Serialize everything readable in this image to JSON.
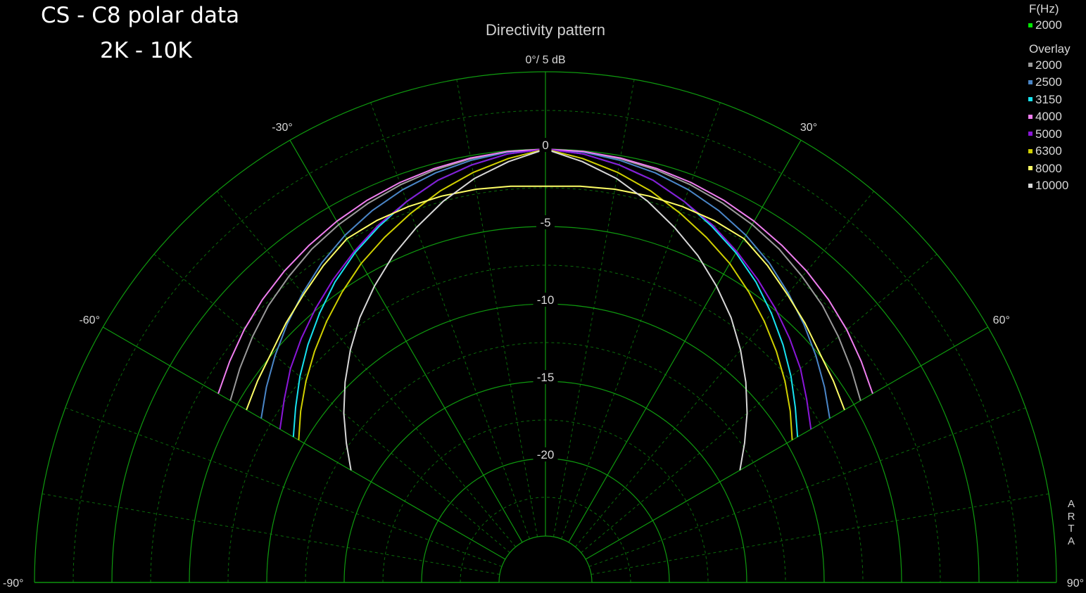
{
  "header": {
    "title": "CS - C8 polar data",
    "subtitle": "2K - 10K"
  },
  "badge": "ARTA",
  "chart_data": {
    "type": "polar",
    "title": "Directivity pattern",
    "scale_label": "0°/ 5 dB",
    "angle_unit": "deg",
    "angle_range": [
      -90,
      90
    ],
    "angle_ticks": [
      {
        "angle": -90,
        "label": "-90°"
      },
      {
        "angle": -60,
        "label": "-60°"
      },
      {
        "angle": -30,
        "label": "-30°"
      },
      {
        "angle": 30,
        "label": "30°"
      },
      {
        "angle": 60,
        "label": "60°"
      },
      {
        "angle": 90,
        "label": "90°"
      }
    ],
    "radial_range_db": [
      -25,
      5
    ],
    "radial_ticks": [
      {
        "value": 0,
        "label": "0"
      },
      {
        "value": -5,
        "label": "-5"
      },
      {
        "value": -10,
        "label": "-10"
      },
      {
        "value": -15,
        "label": "-15"
      },
      {
        "value": -20,
        "label": "-20"
      }
    ],
    "legend": {
      "frequency_header": "F(Hz)",
      "current": {
        "label": "2000",
        "color": "#00e600"
      },
      "overlay_header": "Overlay",
      "overlays": [
        {
          "label": "2000",
          "color": "#9a9a9a"
        },
        {
          "label": "2500",
          "color": "#4a86c8"
        },
        {
          "label": "3150",
          "color": "#17e3f0"
        },
        {
          "label": "4000",
          "color": "#f07ef0"
        },
        {
          "label": "5000",
          "color": "#8a16d8"
        },
        {
          "label": "6300",
          "color": "#d0d000"
        },
        {
          "label": "8000",
          "color": "#ffff66"
        },
        {
          "label": "10000",
          "color": "#d8d8d8"
        }
      ]
    },
    "series": [
      {
        "name": "2000",
        "color": "#9a9a9a",
        "angles": [
          -60,
          -55,
          -50,
          -45,
          -40,
          -35,
          -30,
          -25,
          -20,
          -15,
          -10,
          -5,
          0,
          5,
          10,
          15,
          20,
          25,
          30,
          35,
          40,
          45,
          50,
          55,
          60
        ],
        "db": [
          -4.5,
          -3.9,
          -3.3,
          -2.7,
          -2.2,
          -1.7,
          -1.3,
          -0.95,
          -0.65,
          -0.4,
          -0.2,
          -0.05,
          0,
          -0.05,
          -0.2,
          -0.4,
          -0.65,
          -0.95,
          -1.3,
          -1.7,
          -2.2,
          -2.7,
          -3.3,
          -3.9,
          -4.5
        ]
      },
      {
        "name": "2500",
        "color": "#4a86c8",
        "angles": [
          -60,
          -55,
          -50,
          -45,
          -40,
          -35,
          -30,
          -25,
          -20,
          -15,
          -10,
          -5,
          0,
          5,
          10,
          15,
          20,
          25,
          30,
          35,
          40,
          45,
          50,
          55,
          60
        ],
        "db": [
          -6.8,
          -6.0,
          -5.2,
          -4.4,
          -3.6,
          -2.8,
          -2.1,
          -1.5,
          -1.0,
          -0.6,
          -0.3,
          -0.08,
          0,
          -0.08,
          -0.3,
          -0.6,
          -1.0,
          -1.5,
          -2.1,
          -2.8,
          -3.6,
          -4.4,
          -5.2,
          -6.0,
          -6.8
        ]
      },
      {
        "name": "3150",
        "color": "#17e3f0",
        "angles": [
          -60,
          -55,
          -50,
          -45,
          -40,
          -35,
          -30,
          -25,
          -20,
          -15,
          -10,
          -5,
          0,
          5,
          10,
          15,
          20,
          25,
          30,
          35,
          40,
          45,
          50,
          55,
          60
        ],
        "db": [
          -9.2,
          -8.3,
          -7.3,
          -6.3,
          -5.3,
          -4.3,
          -3.4,
          -2.6,
          -1.8,
          -1.1,
          -0.6,
          -0.2,
          0,
          -0.2,
          -0.6,
          -1.1,
          -1.8,
          -2.6,
          -3.4,
          -4.3,
          -5.3,
          -6.3,
          -7.3,
          -8.3,
          -9.2
        ]
      },
      {
        "name": "4000",
        "color": "#f07ef0",
        "angles": [
          -60,
          -55,
          -50,
          -45,
          -40,
          -35,
          -30,
          -25,
          -20,
          -15,
          -10,
          -5,
          0,
          5,
          10,
          15,
          20,
          25,
          30,
          35,
          40,
          45,
          50,
          55,
          60
        ],
        "db": [
          -3.6,
          -3.1,
          -2.6,
          -2.15,
          -1.75,
          -1.4,
          -1.05,
          -0.75,
          -0.5,
          -0.3,
          -0.15,
          -0.04,
          0,
          -0.04,
          -0.15,
          -0.3,
          -0.5,
          -0.75,
          -1.05,
          -1.4,
          -1.75,
          -2.15,
          -2.6,
          -3.1,
          -3.6
        ]
      },
      {
        "name": "5000",
        "color": "#8a16d8",
        "angles": [
          -60,
          -55,
          -50,
          -45,
          -40,
          -35,
          -30,
          -25,
          -20,
          -15,
          -10,
          -5,
          0,
          5,
          10,
          15,
          20,
          25,
          30,
          35,
          40,
          45,
          50,
          55,
          60
        ],
        "db": [
          -8.2,
          -7.4,
          -6.5,
          -5.7,
          -4.9,
          -4.1,
          -3.3,
          -2.5,
          -1.8,
          -1.1,
          -0.6,
          -0.2,
          0,
          -0.2,
          -0.6,
          -1.1,
          -1.8,
          -2.5,
          -3.3,
          -4.1,
          -4.9,
          -5.7,
          -6.5,
          -7.4,
          -8.2
        ]
      },
      {
        "name": "6300",
        "color": "#d0d000",
        "angles": [
          -60,
          -55,
          -50,
          -45,
          -40,
          -35,
          -30,
          -25,
          -20,
          -15,
          -10,
          -5,
          0,
          5,
          10,
          15,
          20,
          25,
          30,
          35,
          40,
          45,
          50,
          55,
          60
        ],
        "db": [
          -9.6,
          -8.7,
          -7.8,
          -6.9,
          -6.0,
          -5.1,
          -4.2,
          -3.4,
          -2.6,
          -1.8,
          -1.1,
          -0.5,
          0,
          -0.5,
          -1.1,
          -1.8,
          -2.6,
          -3.4,
          -4.2,
          -5.1,
          -6.0,
          -6.9,
          -7.8,
          -8.7,
          -9.6
        ]
      },
      {
        "name": "8000",
        "color": "#ffff66",
        "angles": [
          -60,
          -55,
          -50,
          -45,
          -40,
          -35,
          -30,
          -25,
          -20,
          -15,
          -10,
          -5,
          0,
          5,
          10,
          15,
          20,
          25,
          30,
          35,
          40,
          45,
          50,
          55,
          60
        ],
        "db": [
          -5.7,
          -5.3,
          -4.9,
          -4.3,
          -3.7,
          -3.0,
          -2.35,
          -2.2,
          -2.15,
          -2.15,
          -2.2,
          -2.3,
          -2.4,
          -2.3,
          -2.2,
          -2.15,
          -2.15,
          -2.2,
          -2.35,
          -3.0,
          -3.7,
          -4.3,
          -4.9,
          -5.3,
          -5.7
        ]
      },
      {
        "name": "10000",
        "color": "#d8d8d8",
        "angles": [
          -60,
          -55,
          -50,
          -45,
          -40,
          -35,
          -30,
          -25,
          -20,
          -15,
          -10,
          -5,
          0,
          5,
          10,
          15,
          20,
          25,
          30,
          35,
          40,
          45,
          50,
          55,
          60
        ],
        "db": [
          -13.5,
          -12.3,
          -11.0,
          -9.7,
          -8.4,
          -7.1,
          -5.9,
          -4.7,
          -3.6,
          -2.5,
          -1.5,
          -0.7,
          0,
          -0.7,
          -1.5,
          -2.5,
          -3.6,
          -4.7,
          -5.9,
          -7.1,
          -8.4,
          -9.7,
          -11.0,
          -12.3,
          -13.5
        ]
      }
    ]
  }
}
